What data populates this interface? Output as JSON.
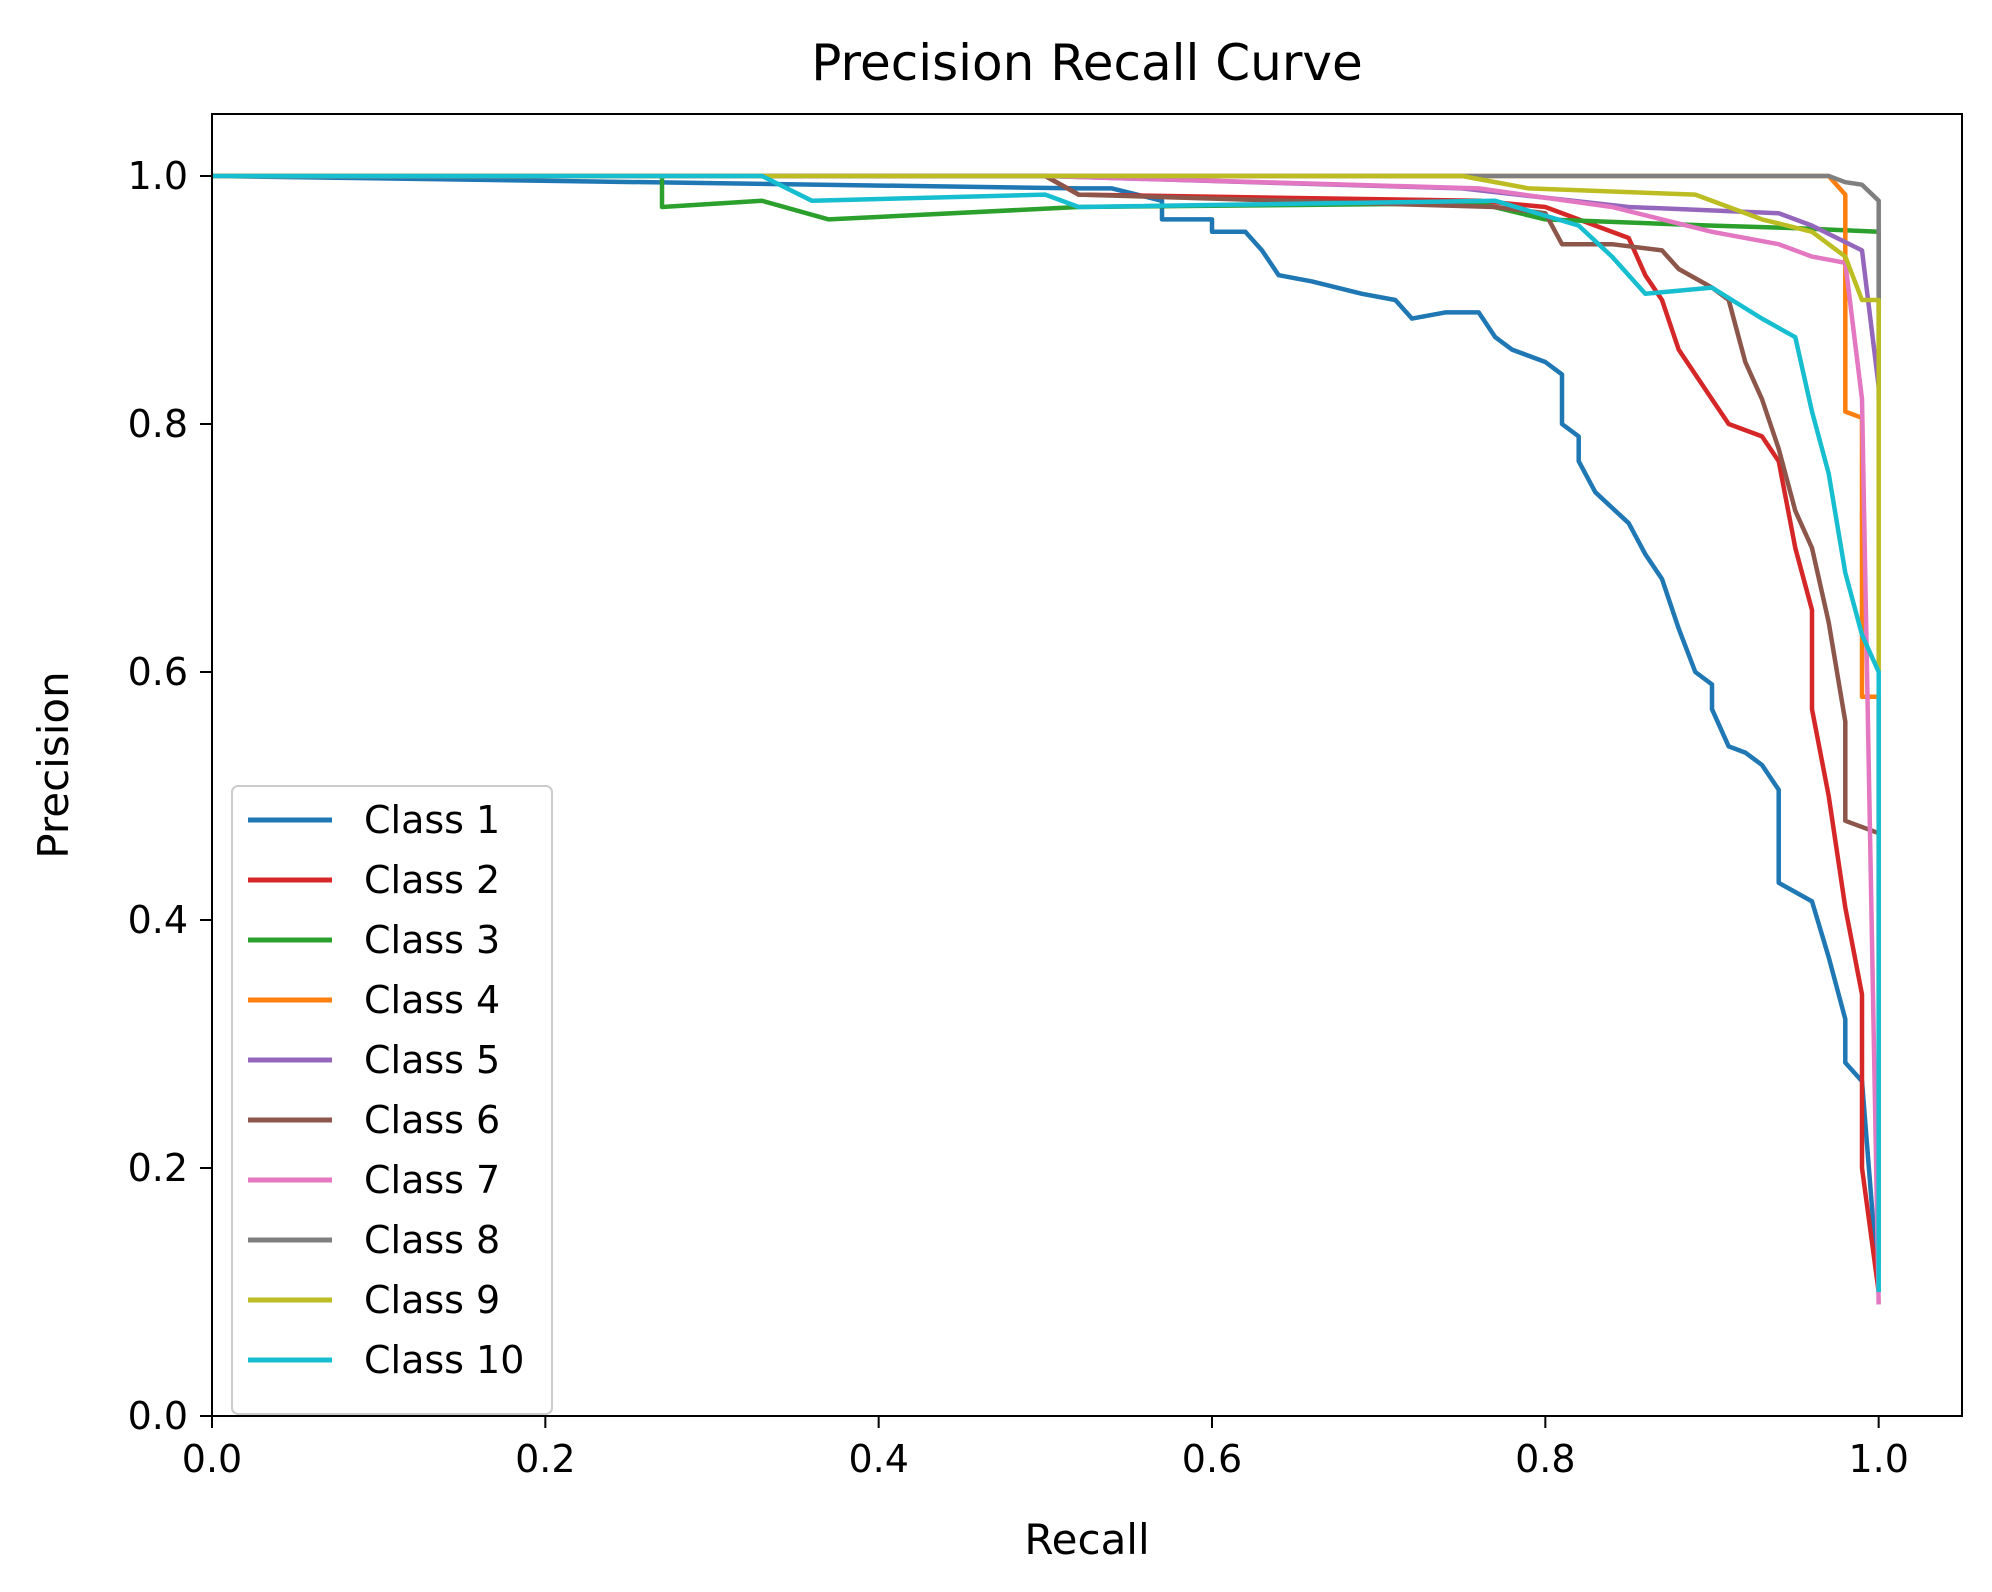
{
  "chart_data": {
    "type": "line",
    "title": "Precision Recall Curve",
    "xlabel": "Recall",
    "ylabel": "Precision",
    "xlim": [
      0.0,
      1.05
    ],
    "ylim": [
      0.0,
      1.05
    ],
    "xticks": [
      "0.0",
      "0.2",
      "0.4",
      "0.6",
      "0.8",
      "1.0"
    ],
    "yticks": [
      "0.0",
      "0.2",
      "0.4",
      "0.6",
      "0.8",
      "1.0"
    ],
    "grid": false,
    "legend_position": "lower-left",
    "series": [
      {
        "name": "Class 1",
        "color": "#1f77b4",
        "x": [
          0.0,
          0.52,
          0.54,
          0.57,
          0.57,
          0.6,
          0.6,
          0.62,
          0.63,
          0.64,
          0.66,
          0.69,
          0.71,
          0.72,
          0.74,
          0.76,
          0.77,
          0.78,
          0.8,
          0.81,
          0.81,
          0.82,
          0.82,
          0.83,
          0.85,
          0.86,
          0.87,
          0.88,
          0.89,
          0.9,
          0.9,
          0.91,
          0.92,
          0.93,
          0.94,
          0.94,
          0.96,
          0.97,
          0.98,
          0.98,
          0.99,
          1.0
        ],
        "y": [
          1.0,
          0.99,
          0.99,
          0.98,
          0.965,
          0.965,
          0.955,
          0.955,
          0.94,
          0.92,
          0.915,
          0.905,
          0.9,
          0.885,
          0.89,
          0.89,
          0.87,
          0.86,
          0.85,
          0.84,
          0.8,
          0.79,
          0.77,
          0.745,
          0.72,
          0.695,
          0.675,
          0.635,
          0.6,
          0.59,
          0.57,
          0.54,
          0.535,
          0.525,
          0.505,
          0.43,
          0.415,
          0.37,
          0.32,
          0.285,
          0.27,
          0.1
        ]
      },
      {
        "name": "Class 2",
        "color": "#d62728",
        "x": [
          0.0,
          0.5,
          0.52,
          0.76,
          0.8,
          0.85,
          0.86,
          0.87,
          0.88,
          0.89,
          0.9,
          0.91,
          0.93,
          0.94,
          0.95,
          0.96,
          0.96,
          0.97,
          0.98,
          0.99,
          0.99,
          1.0
        ],
        "y": [
          1.0,
          1.0,
          0.985,
          0.98,
          0.975,
          0.95,
          0.92,
          0.9,
          0.86,
          0.84,
          0.82,
          0.8,
          0.79,
          0.77,
          0.7,
          0.65,
          0.57,
          0.5,
          0.41,
          0.34,
          0.2,
          0.1
        ]
      },
      {
        "name": "Class 3",
        "color": "#2ca02c",
        "x": [
          0.0,
          0.27,
          0.27,
          0.33,
          0.37,
          0.52,
          0.76,
          0.8,
          0.9,
          0.95,
          1.0,
          1.0
        ],
        "y": [
          1.0,
          1.0,
          0.975,
          0.98,
          0.965,
          0.975,
          0.978,
          0.965,
          0.96,
          0.958,
          0.955,
          0.82
        ]
      },
      {
        "name": "Class 4",
        "color": "#ff7f0e",
        "x": [
          0.0,
          0.95,
          0.97,
          0.98,
          0.98,
          0.99,
          0.99,
          1.0,
          1.0
        ],
        "y": [
          1.0,
          1.0,
          1.0,
          0.985,
          0.81,
          0.805,
          0.58,
          0.58,
          0.12
        ]
      },
      {
        "name": "Class 5",
        "color": "#9467bd",
        "x": [
          0.0,
          0.5,
          0.75,
          0.85,
          0.94,
          0.96,
          0.99,
          1.0
        ],
        "y": [
          1.0,
          1.0,
          0.99,
          0.975,
          0.97,
          0.96,
          0.94,
          0.83
        ]
      },
      {
        "name": "Class 6",
        "color": "#8c564b",
        "x": [
          0.0,
          0.5,
          0.52,
          0.77,
          0.8,
          0.81,
          0.84,
          0.87,
          0.88,
          0.9,
          0.91,
          0.92,
          0.93,
          0.94,
          0.95,
          0.96,
          0.97,
          0.98,
          0.98,
          1.0
        ],
        "y": [
          1.0,
          1.0,
          0.985,
          0.975,
          0.97,
          0.945,
          0.945,
          0.94,
          0.925,
          0.91,
          0.9,
          0.85,
          0.82,
          0.78,
          0.73,
          0.7,
          0.64,
          0.56,
          0.48,
          0.47
        ]
      },
      {
        "name": "Class 7",
        "color": "#e377c2",
        "x": [
          0.0,
          0.5,
          0.76,
          0.84,
          0.9,
          0.94,
          0.96,
          0.98,
          0.99,
          1.0
        ],
        "y": [
          1.0,
          1.0,
          0.99,
          0.975,
          0.955,
          0.945,
          0.935,
          0.93,
          0.82,
          0.09
        ]
      },
      {
        "name": "Class 8",
        "color": "#7f7f7f",
        "x": [
          0.0,
          0.97,
          0.98,
          0.99,
          1.0,
          1.0
        ],
        "y": [
          1.0,
          1.0,
          0.995,
          0.993,
          0.98,
          0.89
        ]
      },
      {
        "name": "Class 9",
        "color": "#bcbd22",
        "x": [
          0.0,
          0.75,
          0.79,
          0.89,
          0.93,
          0.96,
          0.98,
          0.99,
          1.0,
          1.0
        ],
        "y": [
          1.0,
          1.0,
          0.99,
          0.985,
          0.965,
          0.955,
          0.935,
          0.9,
          0.9,
          0.6
        ]
      },
      {
        "name": "Class 10",
        "color": "#17becf",
        "x": [
          0.0,
          0.33,
          0.36,
          0.5,
          0.52,
          0.77,
          0.82,
          0.84,
          0.86,
          0.9,
          0.93,
          0.95,
          0.96,
          0.97,
          0.98,
          0.99,
          1.0,
          1.0
        ],
        "y": [
          1.0,
          1.0,
          0.98,
          0.985,
          0.975,
          0.98,
          0.96,
          0.935,
          0.905,
          0.91,
          0.885,
          0.87,
          0.81,
          0.76,
          0.68,
          0.63,
          0.6,
          0.1
        ]
      }
    ]
  }
}
